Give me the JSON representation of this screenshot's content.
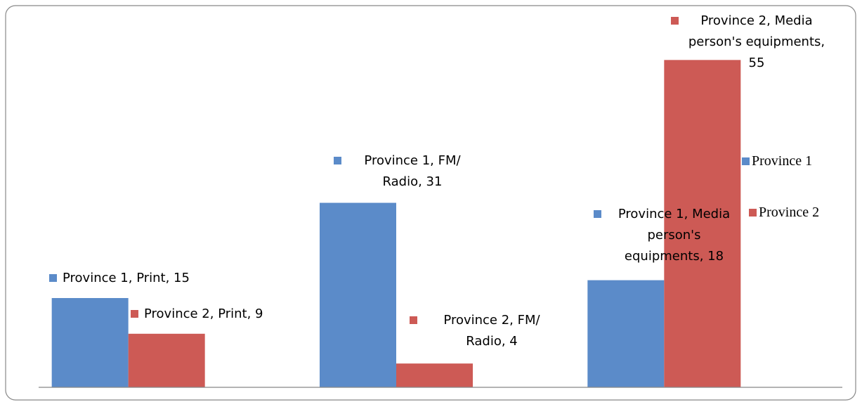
{
  "chart_data": {
    "type": "bar",
    "categories": [
      null,
      null,
      null
    ],
    "series": [
      {
        "name": "Province 1",
        "color": "#5b8bc9",
        "values": [
          15,
          31,
          18
        ],
        "value_labels": [
          "Province 1, Print, 15",
          "Province 1, FM/ Radio, 31",
          "Province 1, Media person's equipments, 18"
        ]
      },
      {
        "name": "Province 2",
        "color": "#cd5a55",
        "values": [
          9,
          4,
          55
        ],
        "value_labels": [
          "Province 2, Print, 9",
          "Province 2, FM/ Radio, 4",
          "Province 2, Media person's equipments, 55"
        ]
      }
    ],
    "ylim": [
      0,
      60
    ]
  }
}
